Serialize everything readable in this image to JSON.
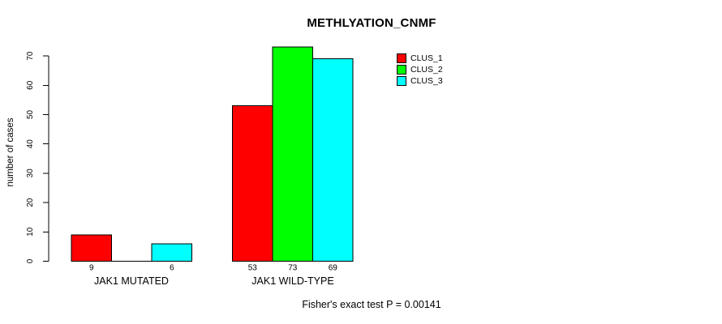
{
  "page": {
    "background": "#ffffff",
    "text_color": "#000000"
  },
  "chart_data": {
    "type": "bar",
    "title": "METHLYATION_CNMF",
    "xlabel": "",
    "ylabel": "number of cases",
    "categories": [
      "JAK1 MUTATED",
      "JAK1 WILD-TYPE"
    ],
    "series": [
      {
        "name": "CLUS_1",
        "color": "#ff0000",
        "values": [
          9,
          53
        ]
      },
      {
        "name": "CLUS_2",
        "color": "#00ff00",
        "values": [
          0,
          73
        ]
      },
      {
        "name": "CLUS_3",
        "color": "#00ffff",
        "values": [
          6,
          69
        ]
      }
    ],
    "ylim": [
      0,
      70
    ],
    "yticks": [
      0,
      10,
      20,
      30,
      40,
      50,
      60,
      70
    ],
    "grid": false,
    "bar_border_color": "#000000",
    "value_labels_shown": true,
    "value_labels_hide_zero": true,
    "legend_position": "top-right",
    "annotation": "Fisher's exact test P = 0.00141"
  }
}
